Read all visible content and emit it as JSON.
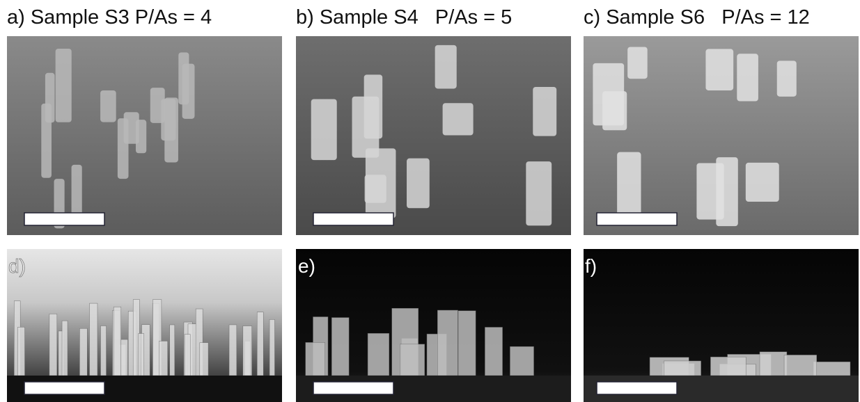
{
  "panels": {
    "top_titles": [
      "a) Sample S3 P/As = 4",
      "b) Sample S4   P/As = 5",
      "c) Sample S6   P/As = 12"
    ],
    "bottom_labels": [
      "d)",
      "e)",
      "f)"
    ]
  }
}
